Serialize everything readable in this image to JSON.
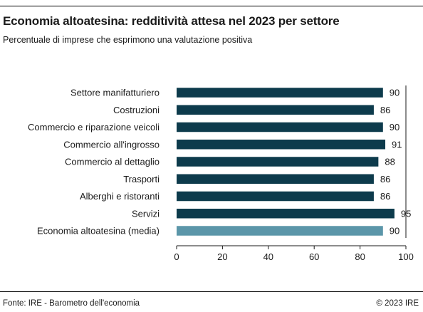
{
  "header": {
    "title": "Economia altoatesina: redditività attesa nel 2023 per settore",
    "subtitle": "Percentuale di imprese che esprimono una valutazione positiva"
  },
  "footer": {
    "source": "Fonte: IRE - Barometro dell'economia",
    "copyright": "© 2023 IRE"
  },
  "colors": {
    "bar": "#0d3b4c",
    "bar_highlight": "#5b96a9"
  },
  "chart_data": {
    "type": "bar",
    "orientation": "horizontal",
    "categories": [
      "Settore manifatturiero",
      "Costruzioni",
      "Commercio e riparazione veicoli",
      "Commercio all'ingrosso",
      "Commercio al dettaglio",
      "Trasporti",
      "Alberghi e ristoranti",
      "Servizi",
      "Economia altoatesina (media)"
    ],
    "values": [
      90,
      86,
      90,
      91,
      88,
      86,
      86,
      95,
      90
    ],
    "highlight_index": 8,
    "xlim": [
      0,
      100
    ],
    "xticks": [
      0,
      20,
      40,
      60,
      80,
      100
    ],
    "xlabel": "",
    "ylabel": ""
  }
}
